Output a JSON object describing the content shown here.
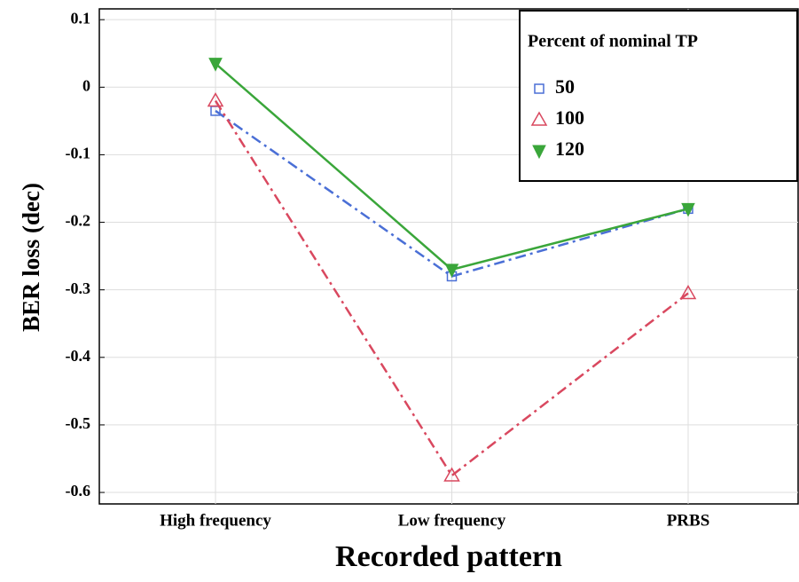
{
  "chart_data": {
    "type": "line",
    "x_label": "Recorded pattern",
    "y_label": "BER loss (dec)",
    "legend_title": "Percent of nominal TP",
    "legend_position": "upper right",
    "grid": true,
    "categories": [
      "High frequency",
      "Low frequency",
      "PRBS"
    ],
    "ylim": [
      -0.617,
      0.116
    ],
    "yticks": [
      0.1,
      0,
      -0.1,
      -0.2,
      -0.3,
      -0.4,
      -0.5,
      -0.6
    ],
    "series": [
      {
        "name": "50",
        "color": "#4a6fd6",
        "marker": "square",
        "dash": "dashdot",
        "values": [
          -0.035,
          -0.28,
          -0.18
        ]
      },
      {
        "name": "100",
        "color": "#d9485f",
        "marker": "triangle-up",
        "dash": "dashdot",
        "values": [
          -0.02,
          -0.575,
          -0.305
        ]
      },
      {
        "name": "120",
        "color": "#3aa63a",
        "marker": "triangle-down",
        "dash": "solid",
        "values": [
          0.035,
          -0.27,
          -0.18
        ]
      }
    ]
  }
}
